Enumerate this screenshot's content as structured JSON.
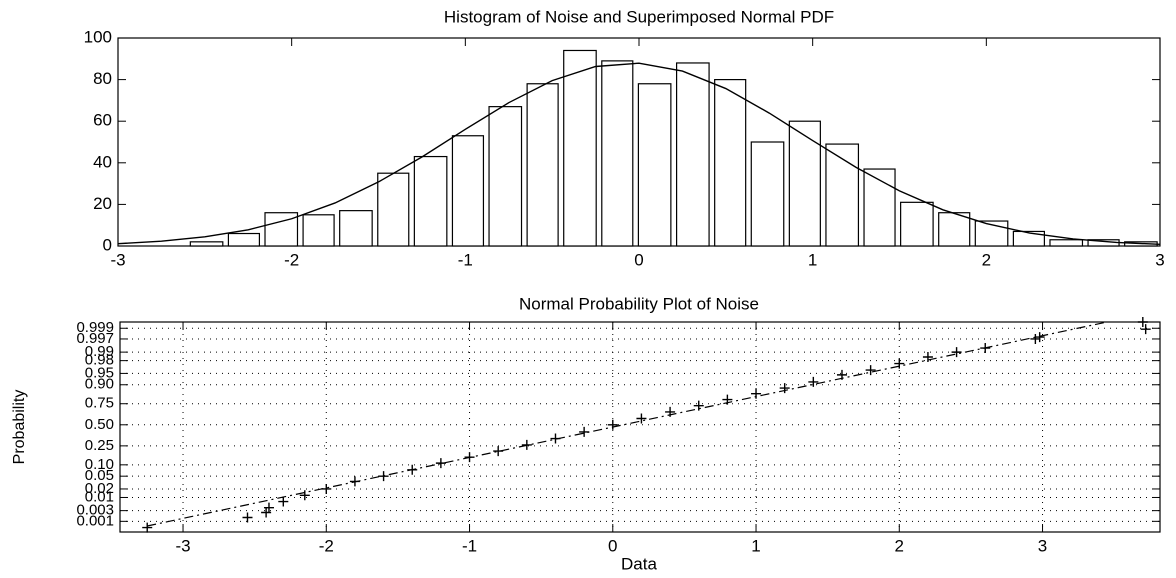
{
  "chart_data": [
    {
      "type": "histogram",
      "title": "Histogram of Noise and Superimposed Normal PDF",
      "bins": [
        -2.6,
        -2.38,
        -2.17,
        -1.95,
        -1.74,
        -1.52,
        -1.31,
        -1.09,
        -0.88,
        -0.66,
        -0.45,
        -0.23,
        -0.02,
        0.2,
        0.42,
        0.63,
        0.85,
        1.06,
        1.28,
        1.49,
        1.71,
        1.92,
        2.14,
        2.35,
        2.57,
        2.78,
        3.0
      ],
      "values": [
        2,
        6,
        16,
        15,
        17,
        35,
        43,
        53,
        67,
        78,
        94,
        89,
        78,
        88,
        80,
        50,
        60,
        49,
        37,
        21,
        16,
        12,
        7,
        3,
        3,
        2
      ],
      "line": {
        "x": [
          -3,
          -2.75,
          -2.5,
          -2.25,
          -2,
          -1.75,
          -1.5,
          -1.25,
          -1,
          -0.75,
          -0.5,
          -0.25,
          0,
          0.25,
          0.5,
          0.75,
          1,
          1.25,
          1.5,
          1.75,
          2,
          2.25,
          2.5,
          2.75,
          3
        ],
        "values": [
          1.1,
          2.3,
          4.4,
          7.8,
          13.1,
          20.7,
          30.8,
          42.8,
          56.1,
          68.9,
          79.5,
          86.3,
          87.9,
          84.1,
          75.7,
          63.9,
          50.7,
          37.8,
          26.5,
          17.4,
          10.8,
          6.2,
          3.4,
          1.7,
          0.8
        ]
      },
      "color": "#000000",
      "xlim": [
        -3,
        3
      ],
      "xticks": [
        -3,
        -2,
        -1,
        0,
        1,
        2,
        3
      ],
      "ylim": [
        0,
        100
      ],
      "yticks": [
        0,
        20,
        40,
        60,
        80,
        100
      ]
    },
    {
      "type": "probability",
      "title": "Normal Probability Plot of Noise",
      "xlabel": "Data",
      "ylabel": "Probability",
      "x": [
        -3.25,
        -2.55,
        -2.42,
        -2.4,
        -2.3,
        -2.15,
        -2.0,
        -1.8,
        -1.6,
        -1.4,
        -1.2,
        -1.0,
        -0.8,
        -0.6,
        -0.4,
        -0.2,
        0,
        0.2,
        0.4,
        0.6,
        0.8,
        1.0,
        1.2,
        1.4,
        1.6,
        1.8,
        2.0,
        2.2,
        2.4,
        2.6,
        2.95,
        2.98,
        3.7,
        3.72
      ],
      "values": [
        0.0005,
        0.0015,
        0.0025,
        0.004,
        0.007,
        0.012,
        0.02,
        0.035,
        0.05,
        0.075,
        0.11,
        0.15,
        0.2,
        0.26,
        0.33,
        0.41,
        0.5,
        0.58,
        0.66,
        0.73,
        0.79,
        0.84,
        0.88,
        0.915,
        0.945,
        0.96,
        0.975,
        0.985,
        0.99,
        0.993,
        0.997,
        0.9975,
        0.9995,
        0.9989
      ],
      "line": {
        "x": [
          -3.25,
          3.45
        ],
        "values": [
          0.0006,
          0.9995
        ]
      },
      "color": "#000000",
      "xlim": [
        -3.44,
        3.82
      ],
      "xticks": [
        -3,
        -2,
        -1,
        0,
        1,
        2,
        3
      ],
      "yscale": "normal",
      "ylim": [
        0.0003,
        0.9995
      ],
      "yticks": [
        0.001,
        0.003,
        0.01,
        0.02,
        0.05,
        {
          "value": 0.1,
          "label": "0.10"
        },
        0.25,
        {
          "value": 0.5,
          "label": "0.50"
        },
        0.75,
        {
          "value": 0.9,
          "label": "0.90"
        },
        0.95,
        0.98,
        0.99,
        0.997,
        0.999
      ],
      "grid": true
    }
  ]
}
